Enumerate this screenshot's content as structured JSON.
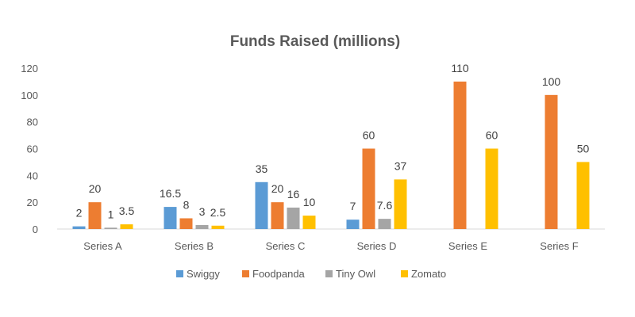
{
  "chart_data": {
    "type": "bar",
    "title": "Funds Raised (millions)",
    "xlabel": "",
    "ylabel": "",
    "categories": [
      "Series A",
      "Series B",
      "Series C",
      "Series D",
      "Series E",
      "Series F"
    ],
    "series": [
      {
        "name": "Swiggy",
        "color": "#5B9BD5",
        "values": [
          2,
          16.5,
          35,
          7,
          null,
          null
        ]
      },
      {
        "name": "Foodpanda",
        "color": "#ED7D31",
        "values": [
          20,
          8,
          20,
          60,
          110,
          100
        ]
      },
      {
        "name": "Tiny Owl",
        "color": "#A5A5A5",
        "values": [
          1,
          3,
          16,
          7.6,
          null,
          null
        ]
      },
      {
        "name": "Zomato",
        "color": "#FFC000",
        "values": [
          3.5,
          2.5,
          10,
          37,
          60,
          50
        ]
      }
    ],
    "ylim": [
      0,
      120
    ],
    "yticks": [
      0,
      20,
      40,
      60,
      80,
      100,
      120
    ],
    "grid": false,
    "legend": "bottom",
    "data_labels": true
  }
}
